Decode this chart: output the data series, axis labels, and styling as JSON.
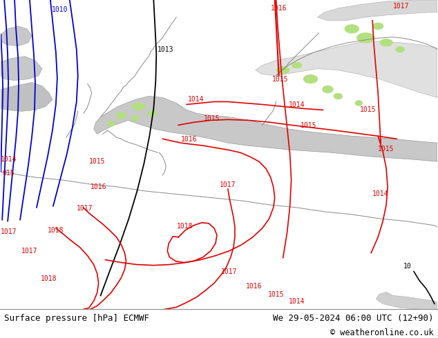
{
  "title_left": "Surface pressure [hPa] ECMWF",
  "title_right": "We 29-05-2024 06:00 UTC (12+90)",
  "copyright": "© weatheronline.co.uk",
  "bg_land_color": "#b2e080",
  "bg_sea_color": "#d0d0d0",
  "footer_bg": "#ffffff",
  "footer_text_color": "#000000",
  "isobar_red_color": "#dd0000",
  "isobar_blue_color": "#0000cc",
  "isobar_black_color": "#000000",
  "fig_width": 6.34,
  "fig_height": 4.9,
  "dpi": 100
}
